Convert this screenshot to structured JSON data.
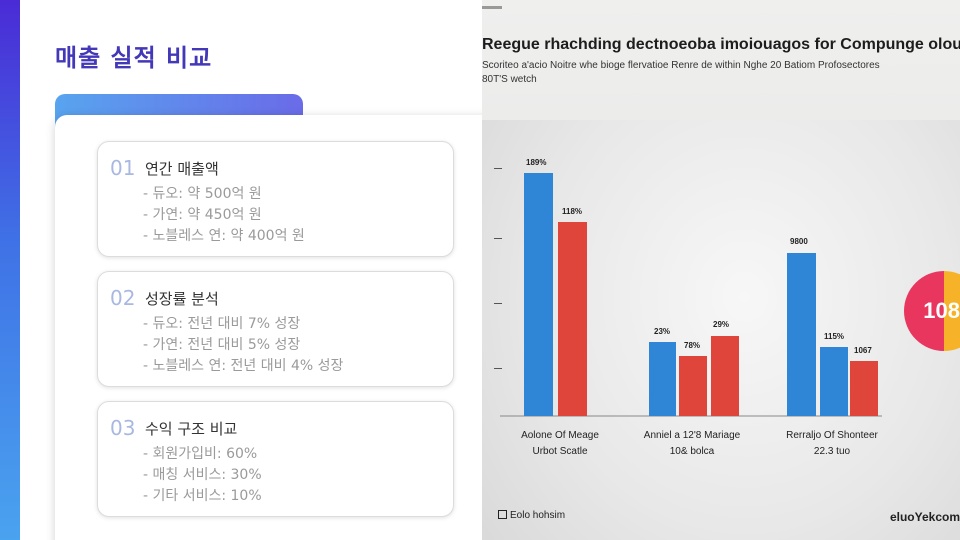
{
  "page": {
    "title": "매출 실적 비교"
  },
  "items": [
    {
      "num": "01",
      "title": "연간 매출액",
      "lines": [
        "- 듀오: 약 500억 원",
        "- 가연: 약 450억 원",
        "- 노블레스 연: 약 400억 원"
      ]
    },
    {
      "num": "02",
      "title": "성장률 분석",
      "lines": [
        "- 듀오: 전년 대비 7% 성장",
        "- 가연: 전년 대비 5% 성장",
        "- 노블레스 연: 전년 대비 4% 성장"
      ]
    },
    {
      "num": "03",
      "title": "수익 구조 비교",
      "lines": [
        "- 회원가입비: 60%",
        "- 매칭 서비스: 30%",
        "- 기타 서비스: 10%"
      ]
    }
  ],
  "photo": {
    "title": "Reegue rhachding dectnoeoba imoiouagos for Compunge olout",
    "subtitle": "Scoriteo a'acio Noitre whe bioge flervatioe Renre de within Nghe 20 Batiom Profosectores",
    "subtitle2": "80T'S wetch",
    "groups": [
      {
        "label1": "Aolone Of Meage",
        "label2": "Urbot Scatle",
        "values": [
          "189%",
          "118%"
        ]
      },
      {
        "label1": "Anniel a 12'8 Mariage",
        "label2": "10& bolca",
        "values": [
          "23%",
          "78%",
          "29%"
        ]
      },
      {
        "label1": "Rerraljo Of Shonteer",
        "label2": "22.3 tuo",
        "values": [
          "9800",
          "115%",
          "1067"
        ]
      }
    ],
    "badge": "108",
    "footer_left": "Eolo hohsim",
    "footer_right": "eluoYekcom",
    "colors": {
      "blue": "#2f86d6",
      "red": "#e0453c"
    }
  }
}
